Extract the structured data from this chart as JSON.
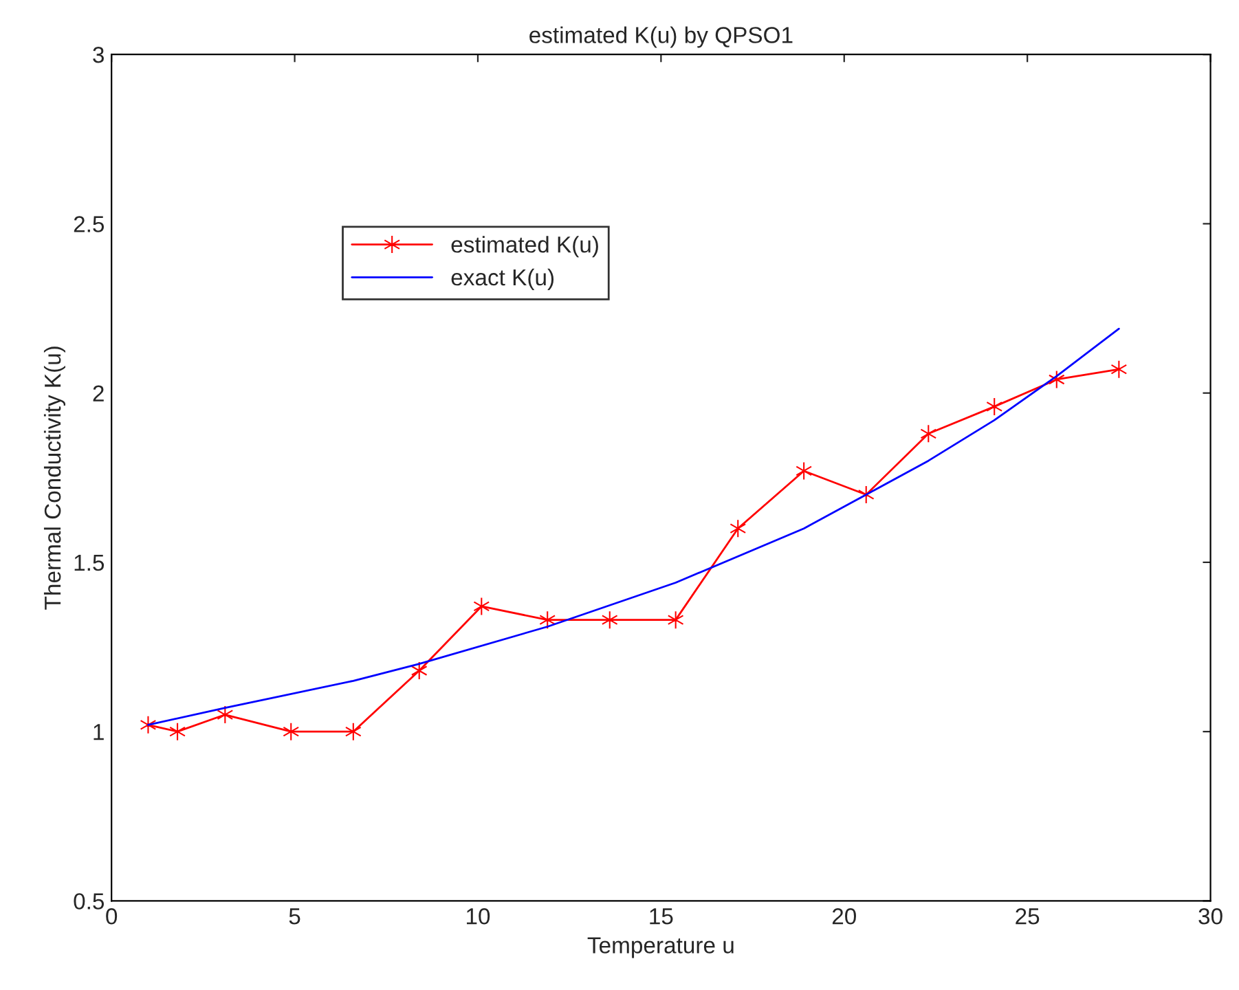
{
  "chart_data": {
    "type": "line",
    "title": "estimated K(u) by QPSO1",
    "xlabel": "Temperature u",
    "ylabel": "Thermal Conductivity K(u)",
    "series": [
      {
        "name": "estimated K(u)",
        "color": "#ff0000",
        "marker": "cross",
        "x": [
          1.0,
          1.8,
          3.1,
          4.9,
          6.6,
          8.4,
          10.1,
          11.9,
          13.6,
          15.4,
          17.1,
          18.9,
          20.6,
          22.3,
          24.1,
          25.8,
          27.5
        ],
        "values": [
          1.02,
          1.0,
          1.05,
          1.0,
          1.0,
          1.18,
          1.37,
          1.33,
          1.33,
          1.33,
          1.6,
          1.77,
          1.7,
          1.88,
          1.96,
          2.04,
          2.07
        ]
      },
      {
        "name": "exact K(u)",
        "color": "#0000ff",
        "marker": "none",
        "x": [
          1.0,
          3.1,
          6.6,
          8.4,
          11.9,
          15.4,
          18.9,
          20.6,
          22.3,
          24.1,
          25.8,
          27.5
        ],
        "values": [
          1.02,
          1.07,
          1.15,
          1.2,
          1.31,
          1.44,
          1.6,
          1.7,
          1.8,
          1.92,
          2.05,
          2.19
        ]
      }
    ],
    "xlim": [
      0,
      30
    ],
    "xticks": [
      0,
      5,
      10,
      15,
      20,
      25,
      30
    ],
    "ylim": [
      0.5,
      3
    ],
    "yticks": [
      0.5,
      1,
      1.5,
      2,
      2.5,
      3
    ],
    "grid": false,
    "legend": "top left",
    "line_style": "solid"
  }
}
